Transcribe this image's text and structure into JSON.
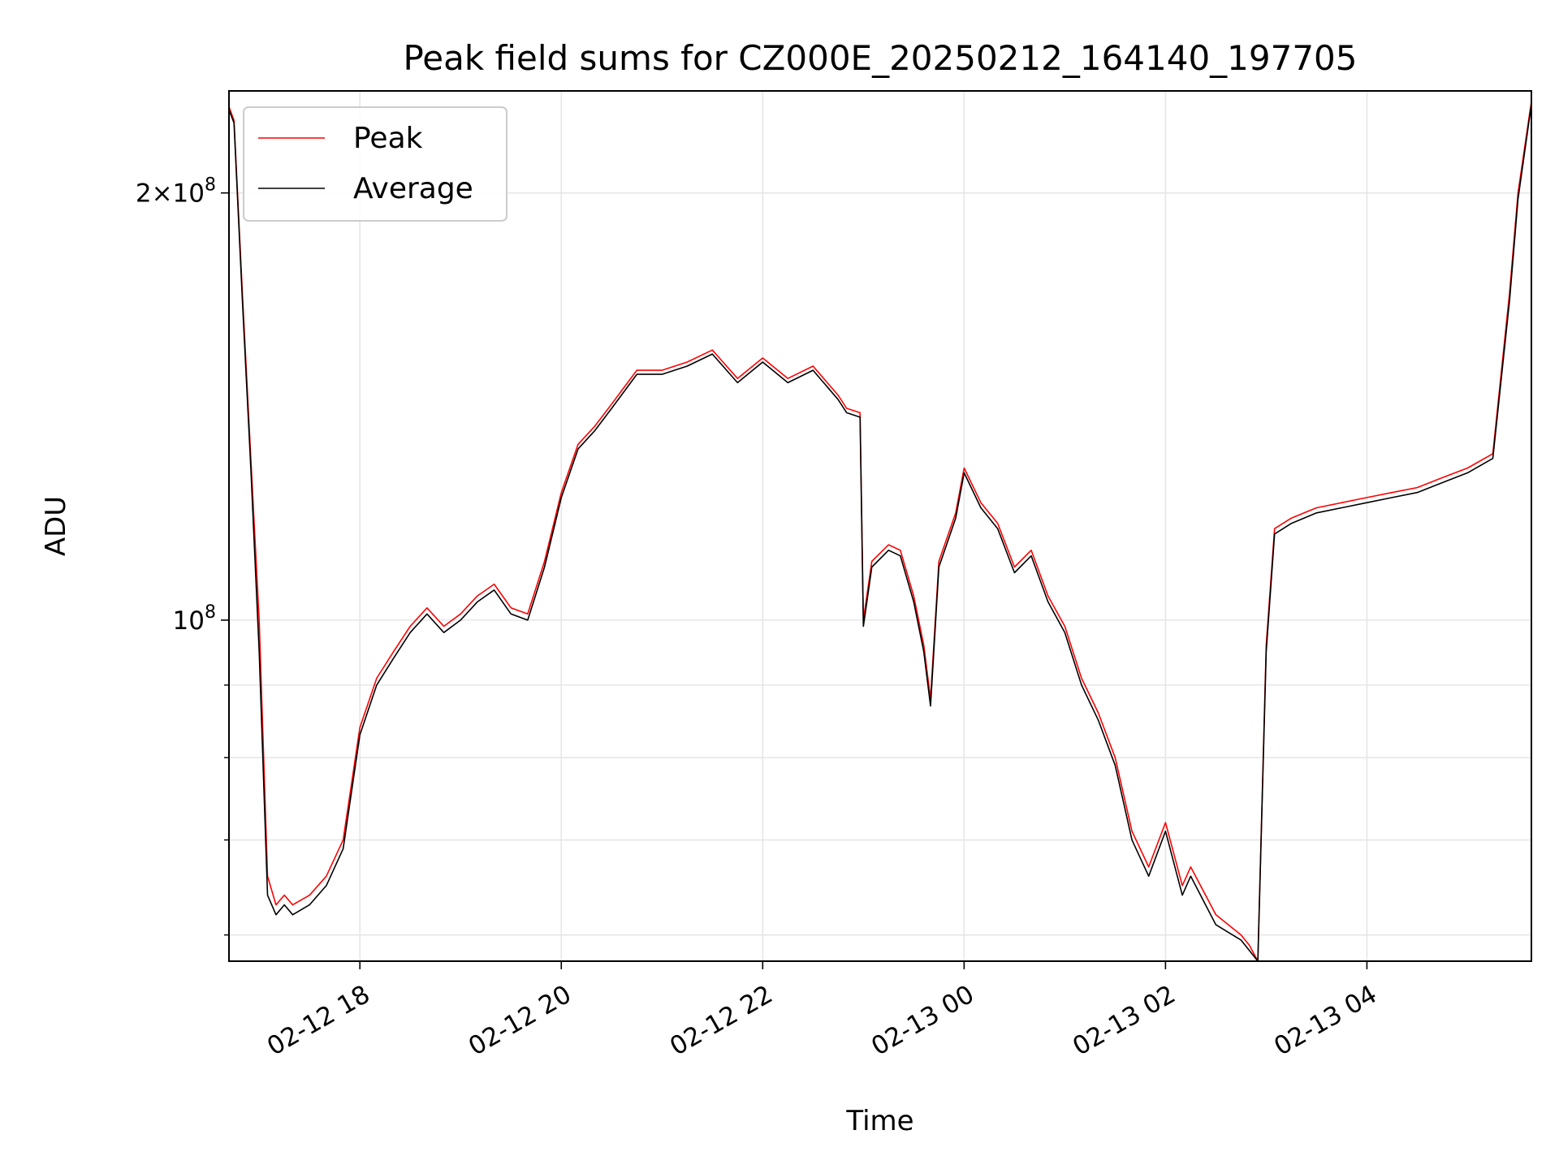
{
  "chart_data": {
    "type": "line",
    "title": "Peak field sums for CZ000E_20250212_164140_197705",
    "xlabel": "Time",
    "ylabel": "ADU",
    "y_scale": "log",
    "ylim": [
      57500000,
      236000000
    ],
    "xlim": [
      "2025-02-12 16:42",
      "2025-02-13 05:38"
    ],
    "x_ticks": [
      "2025-02-12 18:00",
      "2025-02-12 20:00",
      "2025-02-12 22:00",
      "2025-02-13 00:00",
      "2025-02-13 02:00",
      "2025-02-13 04:00"
    ],
    "x_tick_labels": [
      "02-12 18",
      "02-12 20",
      "02-12 22",
      "02-13 00",
      "02-13 02",
      "02-13 04"
    ],
    "y_major_ticks": [
      100000000,
      200000000
    ],
    "y_major_tick_labels": [
      "10^8",
      "2×10^8"
    ],
    "y_minor_ticks": [
      60000000,
      70000000,
      80000000,
      90000000
    ],
    "grid": true,
    "legend_position": "top-left",
    "series": [
      {
        "name": "Peak",
        "color": "#ff0000",
        "x": [
          "2025-02-12 16:42",
          "2025-02-12 16:45",
          "2025-02-12 16:50",
          "2025-02-12 16:55",
          "2025-02-12 17:00",
          "2025-02-12 17:05",
          "2025-02-12 17:10",
          "2025-02-12 17:15",
          "2025-02-12 17:20",
          "2025-02-12 17:30",
          "2025-02-12 17:40",
          "2025-02-12 17:50",
          "2025-02-12 18:00",
          "2025-02-12 18:10",
          "2025-02-12 18:20",
          "2025-02-12 18:30",
          "2025-02-12 18:40",
          "2025-02-12 18:50",
          "2025-02-12 19:00",
          "2025-02-12 19:10",
          "2025-02-12 19:20",
          "2025-02-12 19:30",
          "2025-02-12 19:40",
          "2025-02-12 19:50",
          "2025-02-12 20:00",
          "2025-02-12 20:10",
          "2025-02-12 20:20",
          "2025-02-12 20:30",
          "2025-02-12 20:45",
          "2025-02-12 21:00",
          "2025-02-12 21:15",
          "2025-02-12 21:30",
          "2025-02-12 21:45",
          "2025-02-12 22:00",
          "2025-02-12 22:15",
          "2025-02-12 22:30",
          "2025-02-12 22:45",
          "2025-02-12 22:50",
          "2025-02-12 22:58",
          "2025-02-12 23:00",
          "2025-02-12 23:05",
          "2025-02-12 23:15",
          "2025-02-12 23:22",
          "2025-02-12 23:30",
          "2025-02-12 23:36",
          "2025-02-12 23:40",
          "2025-02-12 23:45",
          "2025-02-12 23:55",
          "2025-02-13 00:00",
          "2025-02-13 00:10",
          "2025-02-13 00:20",
          "2025-02-13 00:30",
          "2025-02-13 00:40",
          "2025-02-13 00:50",
          "2025-02-13 01:00",
          "2025-02-13 01:10",
          "2025-02-13 01:20",
          "2025-02-13 01:30",
          "2025-02-13 01:40",
          "2025-02-13 01:50",
          "2025-02-13 02:00",
          "2025-02-13 02:10",
          "2025-02-13 02:15",
          "2025-02-13 02:30",
          "2025-02-13 02:45",
          "2025-02-13 02:50",
          "2025-02-13 02:55",
          "2025-02-13 03:00",
          "2025-02-13 03:05",
          "2025-02-13 03:15",
          "2025-02-13 03:30",
          "2025-02-13 03:45",
          "2025-02-13 04:00",
          "2025-02-13 04:15",
          "2025-02-13 04:30",
          "2025-02-13 04:45",
          "2025-02-13 05:00",
          "2025-02-13 05:15",
          "2025-02-13 05:25",
          "2025-02-13 05:30",
          "2025-02-13 05:38"
        ],
        "y": [
          230000000,
          225000000,
          170000000,
          130000000,
          100000000,
          66000000,
          63000000,
          64000000,
          63000000,
          64000000,
          66000000,
          70000000,
          84000000,
          91000000,
          95000000,
          99000000,
          102000000,
          99000000,
          101000000,
          104000000,
          106000000,
          102000000,
          101000000,
          110000000,
          123000000,
          133000000,
          137000000,
          142000000,
          150000000,
          150000000,
          152000000,
          155000000,
          148000000,
          153000000,
          148000000,
          151000000,
          144000000,
          141000000,
          140000000,
          100000000,
          110000000,
          113000000,
          112000000,
          104000000,
          96000000,
          88000000,
          110000000,
          119000000,
          128000000,
          121000000,
          117000000,
          109000000,
          112000000,
          104000000,
          99000000,
          91000000,
          86000000,
          80000000,
          71000000,
          67000000,
          72000000,
          65000000,
          67000000,
          62000000,
          60000000,
          59000000,
          57500000,
          96000000,
          116000000,
          118000000,
          120000000,
          121000000,
          122000000,
          123000000,
          124000000,
          126000000,
          128000000,
          131000000,
          170000000,
          200000000,
          232000000
        ]
      },
      {
        "name": "Average",
        "color": "#000000",
        "x": [
          "2025-02-12 16:42",
          "2025-02-12 16:45",
          "2025-02-12 16:50",
          "2025-02-12 16:55",
          "2025-02-12 17:00",
          "2025-02-12 17:05",
          "2025-02-12 17:10",
          "2025-02-12 17:15",
          "2025-02-12 17:20",
          "2025-02-12 17:30",
          "2025-02-12 17:40",
          "2025-02-12 17:50",
          "2025-02-12 18:00",
          "2025-02-12 18:10",
          "2025-02-12 18:20",
          "2025-02-12 18:30",
          "2025-02-12 18:40",
          "2025-02-12 18:50",
          "2025-02-12 19:00",
          "2025-02-12 19:10",
          "2025-02-12 19:20",
          "2025-02-12 19:30",
          "2025-02-12 19:40",
          "2025-02-12 19:50",
          "2025-02-12 20:00",
          "2025-02-12 20:10",
          "2025-02-12 20:20",
          "2025-02-12 20:30",
          "2025-02-12 20:45",
          "2025-02-12 21:00",
          "2025-02-12 21:15",
          "2025-02-12 21:30",
          "2025-02-12 21:45",
          "2025-02-12 22:00",
          "2025-02-12 22:15",
          "2025-02-12 22:30",
          "2025-02-12 22:45",
          "2025-02-12 22:50",
          "2025-02-12 22:58",
          "2025-02-12 23:00",
          "2025-02-12 23:05",
          "2025-02-12 23:15",
          "2025-02-12 23:22",
          "2025-02-12 23:30",
          "2025-02-12 23:36",
          "2025-02-12 23:40",
          "2025-02-12 23:45",
          "2025-02-12 23:55",
          "2025-02-13 00:00",
          "2025-02-13 00:10",
          "2025-02-13 00:20",
          "2025-02-13 00:30",
          "2025-02-13 00:40",
          "2025-02-13 00:50",
          "2025-02-13 01:00",
          "2025-02-13 01:10",
          "2025-02-13 01:20",
          "2025-02-13 01:30",
          "2025-02-13 01:40",
          "2025-02-13 01:50",
          "2025-02-13 02:00",
          "2025-02-13 02:10",
          "2025-02-13 02:15",
          "2025-02-13 02:30",
          "2025-02-13 02:45",
          "2025-02-13 02:50",
          "2025-02-13 02:55",
          "2025-02-13 03:00",
          "2025-02-13 03:05",
          "2025-02-13 03:15",
          "2025-02-13 03:30",
          "2025-02-13 03:45",
          "2025-02-13 04:00",
          "2025-02-13 04:15",
          "2025-02-13 04:30",
          "2025-02-13 04:45",
          "2025-02-13 05:00",
          "2025-02-13 05:15",
          "2025-02-13 05:25",
          "2025-02-13 05:30",
          "2025-02-13 05:38"
        ],
        "y": [
          229000000,
          224000000,
          168000000,
          128000000,
          95000000,
          64000000,
          62000000,
          63000000,
          62000000,
          63000000,
          65000000,
          69000000,
          83000000,
          90000000,
          94000000,
          98000000,
          101000000,
          98000000,
          100000000,
          103000000,
          105000000,
          101000000,
          100000000,
          109000000,
          122000000,
          132000000,
          136000000,
          141000000,
          149000000,
          149000000,
          151000000,
          154000000,
          147000000,
          152000000,
          147000000,
          150000000,
          143000000,
          140000000,
          139000000,
          99000000,
          109000000,
          112000000,
          111000000,
          103000000,
          95000000,
          87000000,
          109000000,
          118000000,
          127000000,
          120000000,
          116000000,
          108000000,
          111000000,
          103000000,
          98000000,
          90000000,
          85000000,
          79000000,
          70000000,
          66000000,
          71000000,
          64000000,
          66000000,
          61000000,
          59500000,
          58500000,
          57500000,
          95000000,
          115000000,
          117000000,
          119000000,
          120000000,
          121000000,
          122000000,
          123000000,
          125000000,
          127000000,
          130000000,
          168000000,
          198000000,
          231000000
        ]
      }
    ]
  }
}
